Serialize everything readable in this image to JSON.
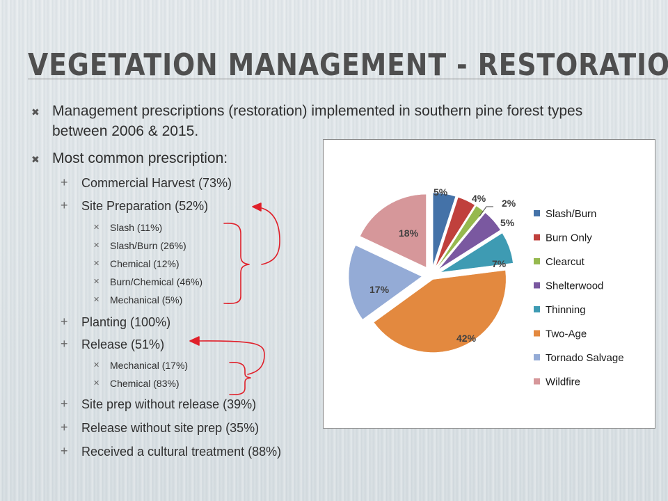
{
  "slide": {
    "title": "VEGETATION MANAGEMENT - RESTORATION",
    "bullets": {
      "b1": "Management prescriptions (restoration) implemented in southern pine forest types between 2006 & 2015.",
      "b2": "Most common prescription:",
      "commercial_harvest": "Commercial Harvest (73%)",
      "site_preparation": "Site Preparation (52%)",
      "slash": "Slash (11%)",
      "slash_burn": "Slash/Burn (26%)",
      "chemical": "Chemical (12%)",
      "burn_chemical": "Burn/Chemical (46%)",
      "mechanical": "Mechanical (5%)",
      "planting": "Planting (100%)",
      "release": "Release (51%)",
      "release_mechanical": "Mechanical (17%)",
      "release_chemical": "Chemical (83%)",
      "site_prep_without_release": "Site prep without release (39%)",
      "release_without_site_prep": "Release without site prep (35%)",
      "cultural_treatment": "Received a cultural treatment (88%)"
    },
    "markers": {
      "level1": "✖",
      "level2": "+",
      "level3": "✕"
    },
    "annotation_color": "#e0202a"
  },
  "chart_data": {
    "type": "pie",
    "categories": [
      "Slash/Burn",
      "Burn Only",
      "Clearcut",
      "Shelterwood",
      "Thinning",
      "Two-Age",
      "Tornado Salvage",
      "Wildfire"
    ],
    "values": [
      5,
      4,
      2,
      5,
      7,
      42,
      17,
      18
    ],
    "labels": [
      "5%",
      "4%",
      "2%",
      "5%",
      "7%",
      "42%",
      "17%",
      "18%"
    ],
    "colors": [
      "#4472a8",
      "#c0403c",
      "#96b94f",
      "#7a58a0",
      "#3e9bb3",
      "#e3893f",
      "#94abd6",
      "#d6979a"
    ],
    "legend_position": "right"
  }
}
